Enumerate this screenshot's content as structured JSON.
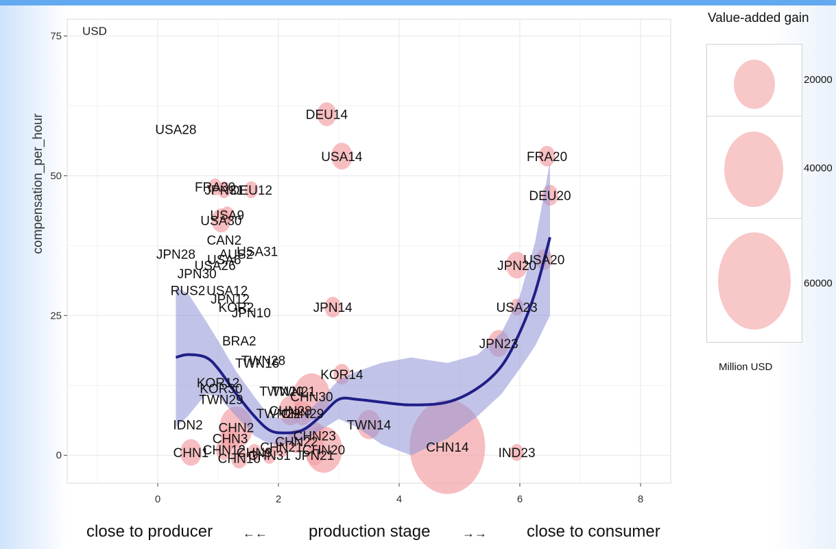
{
  "chart_data": {
    "type": "scatter",
    "unit_label": "USD",
    "ylabel": "compensation_per_hour",
    "xlim": [
      -1.5,
      8.5
    ],
    "ylim": [
      -5,
      78
    ],
    "x_ticks": [
      0,
      2,
      4,
      6,
      8
    ],
    "y_ticks": [
      0,
      25,
      50,
      75
    ],
    "grid": true,
    "points": [
      {
        "label": "USA28",
        "x": 0.3,
        "y": 58.3,
        "size": 0
      },
      {
        "label": "DEU14",
        "x": 2.8,
        "y": 61.0,
        "size": 4000
      },
      {
        "label": "USA14",
        "x": 3.05,
        "y": 53.5,
        "size": 5000
      },
      {
        "label": "FRA20",
        "x": 6.45,
        "y": 53.5,
        "size": 3000
      },
      {
        "label": "DEU20",
        "x": 6.5,
        "y": 46.5,
        "size": 3000
      },
      {
        "label": "FRA30",
        "x": 0.95,
        "y": 48.0,
        "size": 2000
      },
      {
        "label": "JPN31",
        "x": 1.1,
        "y": 47.5,
        "size": 2000
      },
      {
        "label": "DEU12",
        "x": 1.55,
        "y": 47.5,
        "size": 2000
      },
      {
        "label": "USA9",
        "x": 1.15,
        "y": 43.0,
        "size": 2000
      },
      {
        "label": "USA30",
        "x": 1.05,
        "y": 42.0,
        "size": 4000
      },
      {
        "label": "CAN2",
        "x": 1.1,
        "y": 38.5,
        "size": 0
      },
      {
        "label": "USA31",
        "x": 1.65,
        "y": 36.5,
        "size": 0
      },
      {
        "label": "AUS2",
        "x": 1.3,
        "y": 36.0,
        "size": 0
      },
      {
        "label": "USA6",
        "x": 1.1,
        "y": 35.0,
        "size": 0
      },
      {
        "label": "USA26",
        "x": 0.95,
        "y": 34.0,
        "size": 0
      },
      {
        "label": "JPN28",
        "x": 0.3,
        "y": 36.0,
        "size": 0
      },
      {
        "label": "JPN30",
        "x": 0.65,
        "y": 32.5,
        "size": 0
      },
      {
        "label": "RUS2",
        "x": 0.5,
        "y": 29.5,
        "size": 0
      },
      {
        "label": "USA12",
        "x": 1.15,
        "y": 29.5,
        "size": 0
      },
      {
        "label": "JPN12",
        "x": 1.2,
        "y": 28.0,
        "size": 0
      },
      {
        "label": "KOR2",
        "x": 1.3,
        "y": 26.5,
        "size": 0
      },
      {
        "label": "JPN10",
        "x": 1.55,
        "y": 25.5,
        "size": 0
      },
      {
        "label": "JPN14",
        "x": 2.9,
        "y": 26.5,
        "size": 3000
      },
      {
        "label": "JPN20",
        "x": 5.95,
        "y": 34.0,
        "size": 5000
      },
      {
        "label": "USA20",
        "x": 6.4,
        "y": 35.0,
        "size": 3000
      },
      {
        "label": "USA23",
        "x": 5.95,
        "y": 26.5,
        "size": 2000
      },
      {
        "label": "JPN23",
        "x": 5.65,
        "y": 20.0,
        "size": 5000
      },
      {
        "label": "BRA2",
        "x": 1.35,
        "y": 20.5,
        "size": 0
      },
      {
        "label": "TWN28",
        "x": 1.75,
        "y": 17.0,
        "size": 0
      },
      {
        "label": "TWN16",
        "x": 1.65,
        "y": 16.5,
        "size": 0
      },
      {
        "label": "KOR14",
        "x": 3.05,
        "y": 14.5,
        "size": 3000
      },
      {
        "label": "KOR12",
        "x": 1.0,
        "y": 13.0,
        "size": 0
      },
      {
        "label": "KOR30",
        "x": 1.05,
        "y": 12.0,
        "size": 0
      },
      {
        "label": "TWN29",
        "x": 1.05,
        "y": 10.0,
        "size": 0
      },
      {
        "label": "TWN20",
        "x": 2.05,
        "y": 11.5,
        "size": 0
      },
      {
        "label": "TWN21",
        "x": 2.25,
        "y": 11.5,
        "size": 0
      },
      {
        "label": "CHN30",
        "x": 2.55,
        "y": 10.5,
        "size": 15000
      },
      {
        "label": "TWN22",
        "x": 2.0,
        "y": 7.5,
        "size": 0
      },
      {
        "label": "CHN28",
        "x": 2.2,
        "y": 8.0,
        "size": 6000
      },
      {
        "label": "CHN29",
        "x": 2.4,
        "y": 7.5,
        "size": 4000
      },
      {
        "label": "TWN14",
        "x": 3.5,
        "y": 5.5,
        "size": 6000
      },
      {
        "label": "IDN2",
        "x": 0.5,
        "y": 5.5,
        "size": 0
      },
      {
        "label": "CHN2",
        "x": 1.3,
        "y": 5.0,
        "size": 12000
      },
      {
        "label": "CHN1",
        "x": 0.55,
        "y": 0.5,
        "size": 5000
      },
      {
        "label": "CHN3",
        "x": 1.2,
        "y": 3.0,
        "size": 4000
      },
      {
        "label": "CHN12",
        "x": 1.1,
        "y": 1.0,
        "size": 3000
      },
      {
        "label": "CHN10",
        "x": 1.35,
        "y": -0.5,
        "size": 3000
      },
      {
        "label": "CHN9",
        "x": 1.6,
        "y": 0.5,
        "size": 2000
      },
      {
        "label": "CHN31",
        "x": 1.85,
        "y": 0.0,
        "size": 2000
      },
      {
        "label": "CHN21",
        "x": 2.05,
        "y": 1.5,
        "size": 3000
      },
      {
        "label": "CHN22",
        "x": 2.3,
        "y": 2.5,
        "size": 4000
      },
      {
        "label": "CHN23",
        "x": 2.6,
        "y": 3.5,
        "size": 5000
      },
      {
        "label": "CHN20",
        "x": 2.75,
        "y": 1.0,
        "size": 15000
      },
      {
        "label": "JPN21",
        "x": 2.6,
        "y": 0.0,
        "size": 3000
      },
      {
        "label": "CHN14",
        "x": 4.8,
        "y": 1.5,
        "size": 62000
      },
      {
        "label": "IND23",
        "x": 5.95,
        "y": 0.5,
        "size": 2000
      }
    ],
    "smooth_line": {
      "x": [
        0.3,
        0.5,
        0.8,
        1.0,
        1.3,
        1.6,
        1.85,
        2.1,
        2.4,
        2.7,
        3.0,
        3.3,
        3.7,
        4.2,
        4.8,
        5.3,
        5.7,
        6.0,
        6.25,
        6.5
      ],
      "y": [
        17.5,
        18.0,
        17.5,
        15.5,
        11.0,
        7.0,
        4.5,
        4.0,
        4.5,
        7.0,
        10.0,
        10.0,
        9.5,
        9.0,
        9.5,
        12.0,
        16.0,
        22.0,
        29.0,
        39.0
      ],
      "lower": [
        5.0,
        7.0,
        11.0,
        10.5,
        7.0,
        3.5,
        2.0,
        2.0,
        2.5,
        4.5,
        6.5,
        5.0,
        2.0,
        0.0,
        3.0,
        7.0,
        11.0,
        15.5,
        19.5,
        25.0
      ],
      "upper": [
        30.0,
        29.0,
        24.0,
        20.5,
        15.0,
        10.5,
        7.0,
        6.5,
        7.0,
        10.0,
        13.5,
        15.0,
        16.5,
        17.5,
        16.5,
        18.0,
        22.0,
        28.5,
        38.0,
        52.5
      ]
    },
    "legend": {
      "title": "Value-added gain",
      "unit": "Million USD",
      "entries": [
        {
          "label": "20000",
          "value": 20000
        },
        {
          "label": "40000",
          "value": 40000
        },
        {
          "label": "60000",
          "value": 60000
        }
      ]
    },
    "colors": {
      "bubble": "#f4a3a6",
      "band": "#8f92d6",
      "line": "#1f1f87",
      "grid": "#e6e6e6"
    }
  },
  "bottom": {
    "left": "close to producer",
    "arrow_left": "←←",
    "middle": "production stage",
    "arrow_right": "→→",
    "right": "close to consumer"
  }
}
